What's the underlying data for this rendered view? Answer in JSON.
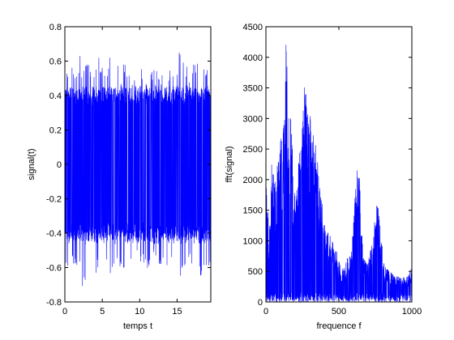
{
  "figure": {
    "background": "#ffffff",
    "line_color": "#0000ff"
  },
  "chart_data": [
    {
      "type": "line",
      "title": "",
      "xlabel": "temps t",
      "ylabel": "signal(t)",
      "xlim": [
        0,
        19.5
      ],
      "ylim": [
        -0.8,
        0.8
      ],
      "xticks": [
        0,
        5,
        10,
        15
      ],
      "yticks": [
        -0.8,
        -0.6,
        -0.4,
        -0.2,
        0,
        0.2,
        0.4,
        0.6,
        0.8
      ],
      "xtick_labels": [
        "0",
        "5",
        "10",
        "15"
      ],
      "ytick_labels": [
        "-0.8",
        "-0.6",
        "-0.4",
        "-0.2",
        "0",
        "0.2",
        "0.4",
        "0.6",
        "0.8"
      ],
      "grid": false,
      "series": [
        {
          "color": "#0000ff",
          "description_of_shape": "dense noise signal",
          "x": [
            0,
            0.5,
            1,
            1.5,
            2,
            2.5,
            3,
            3.5,
            4,
            4.5,
            5,
            5.5,
            6,
            6.5,
            7,
            7.5,
            8,
            8.5,
            9,
            9.5,
            10,
            10.5,
            11,
            11.5,
            12,
            12.5,
            13,
            13.5,
            14,
            14.5,
            15,
            15.5,
            16,
            16.5,
            17,
            17.5,
            18,
            18.5,
            19,
            19.5
          ],
          "upper": [
            0.66,
            0.58,
            0.62,
            0.52,
            0.64,
            0.55,
            0.6,
            0.57,
            0.5,
            0.68,
            0.56,
            0.55,
            0.63,
            0.52,
            0.58,
            0.54,
            0.61,
            0.56,
            0.58,
            0.54,
            0.59,
            0.55,
            0.57,
            0.56,
            0.6,
            0.58,
            0.56,
            0.54,
            0.58,
            0.52,
            0.6,
            0.69,
            0.6,
            0.55,
            0.56,
            0.62,
            0.58,
            0.55,
            0.61,
            0.6
          ],
          "lower": [
            -0.56,
            -0.66,
            -0.58,
            -0.6,
            -0.62,
            -0.76,
            -0.6,
            -0.58,
            -0.7,
            -0.62,
            -0.6,
            -0.6,
            -0.64,
            -0.6,
            -0.6,
            -0.62,
            -0.7,
            -0.6,
            -0.58,
            -0.6,
            -0.56,
            -0.6,
            -0.62,
            -0.56,
            -0.58,
            -0.6,
            -0.6,
            -0.58,
            -0.62,
            -0.6,
            -0.58,
            -0.66,
            -0.6,
            -0.56,
            -0.58,
            -0.6,
            -0.7,
            -0.6,
            -0.6,
            -0.58
          ]
        }
      ]
    },
    {
      "type": "line",
      "title": "",
      "xlabel": "frequence f",
      "ylabel": "fft(signal)",
      "xlim": [
        0,
        1000
      ],
      "ylim": [
        0,
        4500
      ],
      "xticks": [
        0,
        500,
        1000
      ],
      "yticks": [
        0,
        500,
        1000,
        1500,
        2000,
        2500,
        3000,
        3500,
        4000,
        4500
      ],
      "xtick_labels": [
        "0",
        "500",
        "1000"
      ],
      "ytick_labels": [
        "0",
        "500",
        "1000",
        "1500",
        "2000",
        "2500",
        "3000",
        "3500",
        "4000",
        "4500"
      ],
      "grid": false,
      "series": [
        {
          "color": "#0000ff",
          "x": [
            0,
            10,
            20,
            30,
            40,
            50,
            60,
            70,
            80,
            90,
            100,
            110,
            120,
            130,
            140,
            150,
            160,
            170,
            180,
            190,
            200,
            210,
            220,
            230,
            240,
            250,
            260,
            270,
            280,
            290,
            300,
            310,
            320,
            330,
            340,
            350,
            360,
            370,
            380,
            390,
            400,
            410,
            420,
            430,
            440,
            450,
            460,
            470,
            480,
            490,
            500,
            510,
            520,
            530,
            540,
            550,
            560,
            570,
            580,
            590,
            600,
            610,
            620,
            630,
            640,
            650,
            660,
            670,
            680,
            690,
            700,
            710,
            720,
            730,
            740,
            750,
            760,
            770,
            780,
            790,
            800,
            810,
            820,
            830,
            840,
            850,
            860,
            870,
            880,
            890,
            900,
            910,
            920,
            930,
            940,
            950,
            960,
            970,
            980,
            990,
            1000
          ],
          "upper": [
            2400,
            1850,
            1200,
            1400,
            2450,
            2000,
            2550,
            1800,
            2500,
            2200,
            2800,
            2600,
            3200,
            3800,
            4350,
            3400,
            3100,
            3000,
            2600,
            2000,
            1700,
            1900,
            2300,
            2700,
            2500,
            3100,
            3400,
            3700,
            3200,
            3000,
            3100,
            2900,
            2800,
            2750,
            2600,
            2400,
            2200,
            1900,
            1800,
            1550,
            1400,
            1300,
            1250,
            1200,
            1100,
            1000,
            1050,
            950,
            900,
            820,
            700,
            620,
            580,
            560,
            600,
            700,
            720,
            780,
            850,
            1000,
            1300,
            1700,
            2050,
            2300,
            2100,
            1600,
            1200,
            900,
            700,
            620,
            650,
            800,
            950,
            1100,
            1200,
            1450,
            1700,
            1600,
            1350,
            1050,
            850,
            650,
            580,
            550,
            520,
            500,
            480,
            450,
            420,
            420,
            430,
            420,
            400,
            420,
            450,
            420,
            400,
            420,
            480,
            520,
            620
          ],
          "lower": [
            0,
            0,
            0,
            0,
            0,
            0,
            0,
            0,
            0,
            0,
            0,
            0,
            0,
            0,
            0,
            0,
            0,
            0,
            0,
            0,
            0,
            0,
            0,
            0,
            0,
            0,
            0,
            0,
            0,
            0,
            0,
            0,
            0,
            0,
            0,
            0,
            0,
            0,
            0,
            0,
            0,
            0,
            0,
            0,
            0,
            0,
            0,
            0,
            0,
            0,
            0,
            0,
            0,
            0,
            0,
            0,
            0,
            0,
            0,
            0,
            0,
            0,
            0,
            0,
            0,
            0,
            0,
            0,
            0,
            0,
            0,
            0,
            0,
            0,
            0,
            0,
            0,
            0,
            0,
            0,
            0,
            0,
            0,
            0,
            0,
            0,
            0,
            0,
            0,
            0,
            0,
            0,
            0,
            0,
            0,
            0,
            0,
            0,
            0,
            0,
            0
          ]
        }
      ]
    }
  ]
}
